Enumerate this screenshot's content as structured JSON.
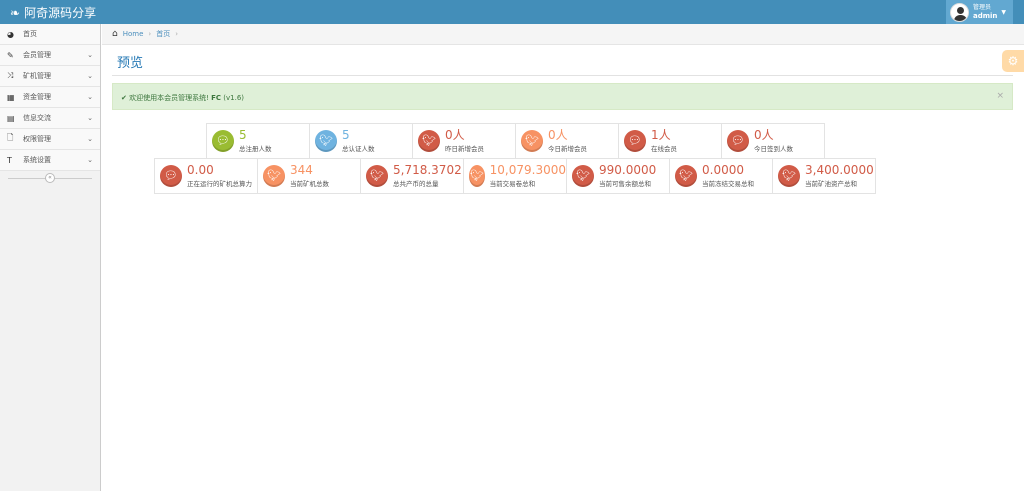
{
  "navbar": {
    "brand": "阿奇源码分享",
    "user_role": "管理员",
    "user_name": "admin"
  },
  "sidebar": {
    "items": [
      {
        "label": "首页",
        "icon": "dashboard-icon",
        "glyph": "◕",
        "chev": false
      },
      {
        "label": "会员管理",
        "icon": "edit-icon",
        "glyph": "✎",
        "chev": true
      },
      {
        "label": "矿机管理",
        "icon": "random-icon",
        "glyph": "⤨",
        "chev": true
      },
      {
        "label": "资金管理",
        "icon": "calendar-icon",
        "glyph": "▦",
        "chev": true
      },
      {
        "label": "信息交流",
        "icon": "list-alt-icon",
        "glyph": "▤",
        "chev": true
      },
      {
        "label": "权限管理",
        "icon": "file-icon",
        "glyph": "🗋",
        "chev": true
      },
      {
        "label": "系统设置",
        "icon": "text-icon",
        "glyph": "T",
        "chev": true
      }
    ]
  },
  "breadcrumb": {
    "home": "Home",
    "current": "首页"
  },
  "page": {
    "title": "预览"
  },
  "alert": {
    "text": "欢迎使用本会员管理系统! ",
    "bold": "FC",
    "version": "(v1.6)"
  },
  "colors": {
    "green": "#9abc32",
    "blue": "#6fb3e0",
    "red": "#d15b47",
    "orange": "#f79263"
  },
  "stats_row1": [
    {
      "value": "5",
      "label": "总注册人数",
      "color": "green",
      "icon": "comments-icon"
    },
    {
      "value": "5",
      "label": "总认证人数",
      "color": "blue",
      "icon": "twitter-icon"
    },
    {
      "value": "0人",
      "label": "昨日新增会员",
      "color": "red",
      "icon": "twitter-icon"
    },
    {
      "value": "0人",
      "label": "今日新增会员",
      "color": "orange",
      "icon": "twitter-icon"
    },
    {
      "value": "1人",
      "label": "在线会员",
      "color": "red",
      "icon": "comments-icon"
    },
    {
      "value": "0人",
      "label": "今日签到人数",
      "color": "red",
      "icon": "comments-icon"
    }
  ],
  "stats_row2": [
    {
      "value": "0.00",
      "label": "正在运行的矿机总算力",
      "color": "red",
      "icon": "comments-icon"
    },
    {
      "value": "344",
      "label": "当前矿机总数",
      "color": "orange",
      "icon": "twitter-icon"
    },
    {
      "value": "5,718.3702",
      "label": "总共产币的总量",
      "color": "red",
      "icon": "twitter-icon"
    },
    {
      "value": "10,079.3000",
      "label": "当前交易卷总和",
      "color": "orange",
      "icon": "twitter-icon"
    },
    {
      "value": "990.0000",
      "label": "当前可售余额总和",
      "color": "red",
      "icon": "twitter-icon"
    },
    {
      "value": "0.0000",
      "label": "当前冻结交易总和",
      "color": "red",
      "icon": "twitter-icon"
    },
    {
      "value": "3,400.0000",
      "label": "当前矿池资产总和",
      "color": "red",
      "icon": "twitter-icon"
    }
  ]
}
